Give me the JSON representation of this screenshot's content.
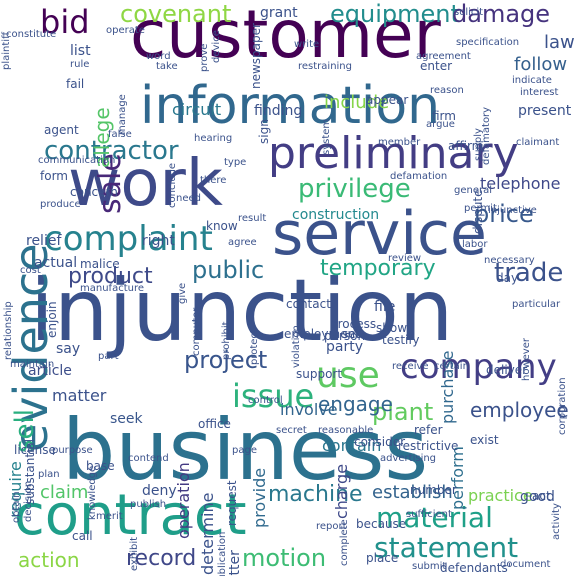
{
  "word_cloud": {
    "background": "#ffffff",
    "palette": "viridis",
    "words": [
      {
        "text": "injunction",
        "color": "#3b528b"
      },
      {
        "text": "business",
        "color": "#2c718e"
      },
      {
        "text": "customer",
        "color": "#440154"
      },
      {
        "text": "service",
        "color": "#3b528b"
      },
      {
        "text": "information",
        "color": "#31688e"
      },
      {
        "text": "contract",
        "color": "#1f9e89"
      },
      {
        "text": "work",
        "color": "#3e4a89"
      },
      {
        "text": "preliminary",
        "color": "#433d84"
      },
      {
        "text": "evidence",
        "color": "#2c728e"
      },
      {
        "text": "complaint",
        "color": "#26828e"
      },
      {
        "text": "company",
        "color": "#433e85"
      },
      {
        "text": "material",
        "color": "#1fa088"
      },
      {
        "text": "statement",
        "color": "#21918c"
      },
      {
        "text": "contractor",
        "color": "#2a788e"
      },
      {
        "text": "privilege",
        "color": "#3aba76"
      },
      {
        "text": "issue",
        "color": "#2db27d"
      },
      {
        "text": "use",
        "color": "#5ec962"
      },
      {
        "text": "covenant",
        "color": "#8fd744"
      },
      {
        "text": "equipment",
        "color": "#228d8d"
      },
      {
        "text": "damage",
        "color": "#46337e"
      },
      {
        "text": "bid",
        "color": "#440154"
      },
      {
        "text": "project",
        "color": "#39558c"
      },
      {
        "text": "product",
        "color": "#3e4a89"
      },
      {
        "text": "public",
        "color": "#2d708e"
      },
      {
        "text": "machine",
        "color": "#2a788e"
      },
      {
        "text": "trade",
        "color": "#3b528b"
      },
      {
        "text": "price",
        "color": "#38598c"
      },
      {
        "text": "sale",
        "color": "#482878"
      },
      {
        "text": "temporary",
        "color": "#21a585"
      },
      {
        "text": "motion",
        "color": "#3dbc74"
      },
      {
        "text": "plant",
        "color": "#62cb5f"
      },
      {
        "text": "employee",
        "color": "#3b528b"
      },
      {
        "text": "record",
        "color": "#3f4788"
      },
      {
        "text": "action",
        "color": "#8bd646"
      },
      {
        "text": "establish",
        "color": "#33638d"
      },
      {
        "text": "require",
        "color": "#26828e"
      },
      {
        "text": "engage",
        "color": "#32648e"
      },
      {
        "text": "sell",
        "color": "#29af7f"
      },
      {
        "text": "follow",
        "color": "#35608d"
      },
      {
        "text": "law",
        "color": "#3b528b"
      },
      {
        "text": "claim",
        "color": "#52c569"
      },
      {
        "text": "practice",
        "color": "#7ad151"
      },
      {
        "text": "allege",
        "color": "#54c568"
      },
      {
        "text": "purchase",
        "color": "#31688e"
      },
      {
        "text": "perform",
        "color": "#2e6f8e"
      },
      {
        "text": "circuit",
        "color": "#2a788e"
      },
      {
        "text": "include",
        "color": "#86d549"
      },
      {
        "text": "telephone",
        "color": "#3f4889"
      },
      {
        "text": "construction",
        "color": "#23898e"
      },
      {
        "text": "contain",
        "color": "#2a768e"
      },
      {
        "text": "operation",
        "color": "#443a83"
      },
      {
        "text": "determine",
        "color": "#3b528b"
      },
      {
        "text": "provide",
        "color": "#306a8e"
      },
      {
        "text": "involve",
        "color": "#32658e"
      },
      {
        "text": "charge",
        "color": "#3e4989"
      },
      {
        "text": "article",
        "color": "#3d4e8a"
      },
      {
        "text": "matter",
        "color": "#3b528b"
      },
      {
        "text": "seek",
        "color": "#39568c"
      },
      {
        "text": "deny",
        "color": "#3b528b"
      },
      {
        "text": "say",
        "color": "#3b528b"
      },
      {
        "text": "right",
        "color": "#3b528b"
      },
      {
        "text": "relief",
        "color": "#3b528b"
      },
      {
        "text": "finding",
        "color": "#3b528b"
      },
      {
        "text": "grant",
        "color": "#3b528b"
      },
      {
        "text": "list",
        "color": "#3b528b"
      },
      {
        "text": "enter",
        "color": "#3b528b"
      },
      {
        "text": "show",
        "color": "#3b528b"
      },
      {
        "text": "process",
        "color": "#3b528b"
      },
      {
        "text": "person",
        "color": "#3b528b"
      },
      {
        "text": "party",
        "color": "#3b528b"
      },
      {
        "text": "testify",
        "color": "#3b528b"
      },
      {
        "text": "employment",
        "color": "#3b528b"
      },
      {
        "text": "file",
        "color": "#3b528b"
      },
      {
        "text": "contact",
        "color": "#3b528b"
      },
      {
        "text": "set",
        "color": "#3b528b"
      },
      {
        "text": "office",
        "color": "#3b528b"
      },
      {
        "text": "receive",
        "color": "#3b528b"
      },
      {
        "text": "certain",
        "color": "#3b528b"
      },
      {
        "text": "deliver",
        "color": "#3b528b"
      },
      {
        "text": "support",
        "color": "#3b528b"
      },
      {
        "text": "restrictive",
        "color": "#3b528b"
      },
      {
        "text": "exist",
        "color": "#3b528b"
      },
      {
        "text": "refer",
        "color": "#3b528b"
      },
      {
        "text": "number",
        "color": "#3b528b"
      },
      {
        "text": "reasonable",
        "color": "#3b528b"
      },
      {
        "text": "consider",
        "color": "#3b528b"
      },
      {
        "text": "complete",
        "color": "#3b528b"
      },
      {
        "text": "request",
        "color": "#3b528b"
      },
      {
        "text": "secret",
        "color": "#3b528b"
      },
      {
        "text": "contend",
        "color": "#3b528b"
      },
      {
        "text": "advertising",
        "color": "#3b528b"
      },
      {
        "text": "publish",
        "color": "#3b528b"
      },
      {
        "text": "sufficient",
        "color": "#3b528b"
      },
      {
        "text": "because",
        "color": "#3b528b"
      },
      {
        "text": "report",
        "color": "#3b528b"
      },
      {
        "text": "place",
        "color": "#3b528b"
      },
      {
        "text": "submit",
        "color": "#3b528b"
      },
      {
        "text": "defendants'",
        "color": "#3b528b"
      },
      {
        "text": "document",
        "color": "#3b528b"
      },
      {
        "text": "letter",
        "color": "#3b528b"
      },
      {
        "text": "call",
        "color": "#3b528b"
      },
      {
        "text": "exhibit",
        "color": "#3b528b"
      },
      {
        "text": "merit",
        "color": "#3b528b"
      },
      {
        "text": "good",
        "color": "#3b528b"
      },
      {
        "text": "act",
        "color": "#3b528b"
      },
      {
        "text": "activity",
        "color": "#3b528b"
      },
      {
        "text": "corporation",
        "color": "#3b528b"
      },
      {
        "text": "however",
        "color": "#3b528b"
      },
      {
        "text": "particular",
        "color": "#3b528b"
      },
      {
        "text": "day",
        "color": "#3b528b"
      },
      {
        "text": "labor",
        "color": "#3b528b"
      },
      {
        "text": "review",
        "color": "#3b528b"
      },
      {
        "text": "necessary",
        "color": "#3b528b"
      },
      {
        "text": "injunctive",
        "color": "#3b528b"
      },
      {
        "text": "dispute",
        "color": "#3b528b"
      },
      {
        "text": "general",
        "color": "#3b528b"
      },
      {
        "text": "permit",
        "color": "#3b528b"
      },
      {
        "text": "defamation",
        "color": "#3b528b"
      },
      {
        "text": "know",
        "color": "#3b528b"
      },
      {
        "text": "result",
        "color": "#3b528b"
      },
      {
        "text": "need",
        "color": "#3b528b"
      },
      {
        "text": "agree",
        "color": "#3b528b"
      },
      {
        "text": "actual",
        "color": "#3b528b"
      },
      {
        "text": "malice",
        "color": "#3b528b"
      },
      {
        "text": "cost",
        "color": "#3b528b"
      },
      {
        "text": "concern",
        "color": "#3b528b"
      },
      {
        "text": "produce",
        "color": "#3b528b"
      },
      {
        "text": "form",
        "color": "#3b528b"
      },
      {
        "text": "communication",
        "color": "#3b528b"
      },
      {
        "text": "agent",
        "color": "#3b528b"
      },
      {
        "text": "false",
        "color": "#3b528b"
      },
      {
        "text": "fail",
        "color": "#3b528b"
      },
      {
        "text": "rule",
        "color": "#3b528b"
      },
      {
        "text": "operate",
        "color": "#3b528b"
      },
      {
        "text": "word",
        "color": "#3b528b"
      },
      {
        "text": "take",
        "color": "#3b528b"
      },
      {
        "text": "solicit",
        "color": "#3b528b"
      },
      {
        "text": "restraining",
        "color": "#3b528b"
      },
      {
        "text": "agreement",
        "color": "#3b528b"
      },
      {
        "text": "specification",
        "color": "#3b528b"
      },
      {
        "text": "indicate",
        "color": "#3b528b"
      },
      {
        "text": "present",
        "color": "#3b528b"
      },
      {
        "text": "interest",
        "color": "#3b528b"
      },
      {
        "text": "reason",
        "color": "#3b528b"
      },
      {
        "text": "appear",
        "color": "#3b528b"
      },
      {
        "text": "firm",
        "color": "#3b528b"
      },
      {
        "text": "argue",
        "color": "#3b528b"
      },
      {
        "text": "supply",
        "color": "#3b528b"
      },
      {
        "text": "defamatory",
        "color": "#3b528b"
      },
      {
        "text": "member",
        "color": "#3b528b"
      },
      {
        "text": "affirm",
        "color": "#3b528b"
      },
      {
        "text": "claimant",
        "color": "#3b528b"
      },
      {
        "text": "system",
        "color": "#3b528b"
      },
      {
        "text": "sign",
        "color": "#3b528b"
      },
      {
        "text": "hearing",
        "color": "#3b528b"
      },
      {
        "text": "type",
        "color": "#3b528b"
      },
      {
        "text": "conclude",
        "color": "#3b528b"
      },
      {
        "text": "there",
        "color": "#3b528b"
      },
      {
        "text": "manage",
        "color": "#3b528b"
      },
      {
        "text": "newspaper",
        "color": "#3b528b"
      },
      {
        "text": "device",
        "color": "#3b528b"
      },
      {
        "text": "prove",
        "color": "#3b528b"
      },
      {
        "text": "write",
        "color": "#3b528b"
      },
      {
        "text": "relationship",
        "color": "#3b528b"
      },
      {
        "text": "enjoin",
        "color": "#3b528b"
      },
      {
        "text": "manufacture",
        "color": "#3b528b"
      },
      {
        "text": "maintain",
        "color": "#3b528b"
      },
      {
        "text": "purpose",
        "color": "#3b528b"
      },
      {
        "text": "license",
        "color": "#3b528b"
      },
      {
        "text": "substantial",
        "color": "#3b528b"
      },
      {
        "text": "plan",
        "color": "#3b528b"
      },
      {
        "text": "base",
        "color": "#3b528b"
      },
      {
        "text": "knowledge",
        "color": "#3b528b"
      },
      {
        "text": "obtain",
        "color": "#3b528b"
      },
      {
        "text": "decision",
        "color": "#3b528b"
      },
      {
        "text": "computer",
        "color": "#3b528b"
      },
      {
        "text": "prohibit",
        "color": "#3b528b"
      },
      {
        "text": "protect",
        "color": "#3b528b"
      },
      {
        "text": "violation",
        "color": "#3b528b"
      },
      {
        "text": "give",
        "color": "#3b528b"
      },
      {
        "text": "page",
        "color": "#3b528b"
      },
      {
        "text": "publication",
        "color": "#3b528b"
      },
      {
        "text": "plaintiff",
        "color": "#3b528b"
      },
      {
        "text": "constitute",
        "color": "#3b528b"
      },
      {
        "text": "part",
        "color": "#3b528b"
      },
      {
        "text": "control",
        "color": "#3b528b"
      }
    ]
  }
}
